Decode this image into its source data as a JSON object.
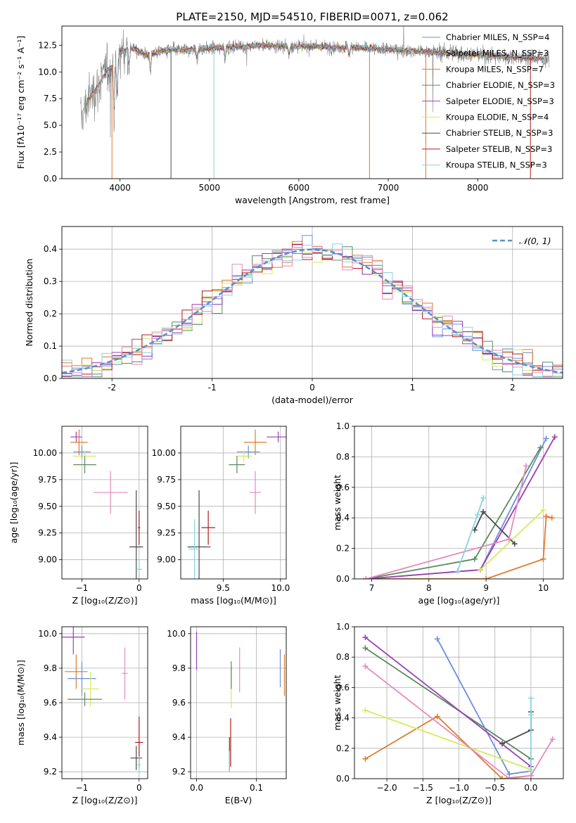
{
  "figure_title": "PLATE=2150, MJD=54510, FIBERID=0071, z=0.062",
  "model_colors": {
    "Chabrier MILES": "#6a8fdb",
    "Salpeter MILES": "#8fa3c7",
    "Kroupa MILES": "#e07b2a",
    "Chabrier ELODIE": "#5a8a5e",
    "Salpeter ELODIE": "#9a3fb5",
    "Kroupa ELODIE": "#d6ea5e",
    "Chabrier STELIB": "#4a4a4a",
    "Salpeter STELIB": "#b01c1c",
    "Kroupa STELIB": "#8ad3e0",
    "pink": "#e48bbd"
  },
  "chart_data": [
    {
      "id": "spectrum",
      "type": "line",
      "xlabel": "wavelength [Angstrom, rest frame]",
      "ylabel": "Flux [fλ10⁻¹⁷ erg cm⁻² s⁻¹ A⁻¹]",
      "xlim": [
        3350,
        8950
      ],
      "ylim": [
        0,
        14.3
      ],
      "xticks": [
        4000,
        5000,
        6000,
        7000,
        8000
      ],
      "yticks": [
        0.0,
        2.5,
        5.0,
        7.5,
        10.0,
        12.5
      ],
      "ytick_labels": [
        "0.0",
        "2.5",
        "5.0",
        "7.5",
        "10.0",
        "12.5"
      ],
      "grid": false,
      "legend_position": "right",
      "legend": [
        "Chabrier MILES, N_SSP=4",
        "Salpeter MILES, N_SSP=3",
        "Kroupa MILES, N_SSP=7",
        "Chabrier ELODIE, N_SSP=3",
        "Salpeter ELODIE, N_SSP=3",
        "Kroupa ELODIE, N_SSP=4",
        "Chabrier STELIB, N_SSP=3",
        "Salpeter STELIB, N_SSP=3",
        "Kroupa STELIB, N_SSP=3"
      ],
      "data_continuum": {
        "x": [
          3560,
          3650,
          3750,
          3850,
          3950,
          4000,
          4100,
          4200,
          4300,
          4400,
          4500,
          4600,
          4700,
          4800,
          5000,
          5200,
          5400,
          5600,
          5800,
          6000,
          6200,
          6400,
          6600,
          6800,
          7000,
          7200,
          7400,
          7600,
          7800,
          8000,
          8200,
          8400,
          8600,
          8800
        ],
        "y": [
          5.5,
          7.5,
          8.6,
          10.1,
          10.8,
          11.8,
          12.3,
          12.0,
          11.6,
          11.8,
          12.0,
          12.1,
          12.0,
          12.1,
          12.2,
          12.3,
          12.4,
          12.5,
          12.4,
          12.4,
          12.4,
          12.3,
          12.3,
          12.2,
          12.1,
          12.0,
          11.9,
          11.8,
          11.7,
          11.6,
          11.5,
          11.4,
          11.3,
          11.2
        ]
      }
    },
    {
      "id": "residuals",
      "type": "histogram",
      "xlabel": "(data-model)/error",
      "ylabel": "Normed distribution",
      "xlim": [
        -2.5,
        2.5
      ],
      "ylim": [
        0,
        0.47
      ],
      "xticks": [
        -2,
        -1,
        0,
        1,
        2
      ],
      "yticks": [
        0.0,
        0.1,
        0.2,
        0.3,
        0.4
      ],
      "ytick_labels": [
        "0.0",
        "0.1",
        "0.2",
        "0.3",
        "0.4"
      ],
      "grid": true,
      "legend_position": "top-right",
      "reference_label": "𝒩(0, 1)",
      "bin_width": 0.1
    },
    {
      "id": "age_vs_Z",
      "type": "scatter",
      "xlabel": "Z [log₁₀(Z/Z⊙)]",
      "ylabel": "age  [log₁₀(age/yr)]",
      "xlim": [
        -1.35,
        0.15
      ],
      "ylim": [
        8.82,
        10.25
      ],
      "xticks": [
        -1,
        0
      ],
      "xtick_labels": [
        "−1",
        "0"
      ],
      "yticks": [
        9.0,
        9.25,
        9.5,
        9.75,
        10.0
      ],
      "ytick_labels": [
        "9.00",
        "9.25",
        "9.50",
        "9.75",
        "10.00"
      ],
      "grid": true,
      "points": [
        {
          "model": "Salpeter ELODIE",
          "x": -1.1,
          "y": 10.15,
          "xerr": 0.1,
          "yerr": 0.05
        },
        {
          "model": "Kroupa MILES",
          "x": -1.05,
          "y": 10.1,
          "xerr": 0.15,
          "yerr": 0.12
        },
        {
          "model": "Chabrier MILES",
          "x": -1.0,
          "y": 10.01,
          "xerr": 0.15,
          "yerr": 0.06
        },
        {
          "model": "Kroupa ELODIE",
          "x": -0.95,
          "y": 9.97,
          "xerr": 0.2,
          "yerr": 0.05
        },
        {
          "model": "Chabrier ELODIE",
          "x": -0.95,
          "y": 9.89,
          "xerr": 0.2,
          "yerr": 0.08
        },
        {
          "model": "pink",
          "x": -0.5,
          "y": 9.63,
          "xerr": 0.3,
          "yerr": 0.2
        },
        {
          "model": "Chabrier STELIB",
          "x": -0.05,
          "y": 9.12,
          "xerr": 0.12,
          "yerr": 0.53
        },
        {
          "model": "Salpeter STELIB",
          "x": 0.0,
          "y": 9.3,
          "xerr": 0.02,
          "yerr": 0.16
        },
        {
          "model": "Kroupa STELIB",
          "x": 0.0,
          "y": 8.91,
          "xerr": 0.05,
          "yerr": 0.08
        }
      ]
    },
    {
      "id": "age_vs_mass",
      "type": "scatter",
      "xlabel": "mass [log₁₀(M/M⊙)]",
      "ylabel": "",
      "xlim": [
        9.13,
        10.05
      ],
      "ylim": [
        8.82,
        10.25
      ],
      "xticks": [
        9.5,
        10.0
      ],
      "xtick_labels": [
        "9.5",
        "10.0"
      ],
      "yticks": [
        9.0,
        9.25,
        9.5,
        9.75,
        10.0
      ],
      "ytick_labels": [
        "9.00",
        "9.25",
        "9.50",
        "9.75",
        "10.00"
      ],
      "grid": true,
      "points": [
        {
          "model": "Salpeter ELODIE",
          "x": 9.98,
          "y": 10.15,
          "xerr": 0.1,
          "yerr": 0.05
        },
        {
          "model": "Kroupa MILES",
          "x": 9.78,
          "y": 10.1,
          "xerr": 0.1,
          "yerr": 0.12
        },
        {
          "model": "Chabrier MILES",
          "x": 9.72,
          "y": 10.01,
          "xerr": 0.1,
          "yerr": 0.06
        },
        {
          "model": "Kroupa ELODIE",
          "x": 9.68,
          "y": 9.97,
          "xerr": 0.07,
          "yerr": 0.05
        },
        {
          "model": "Chabrier ELODIE",
          "x": 9.62,
          "y": 9.89,
          "xerr": 0.07,
          "yerr": 0.08
        },
        {
          "model": "pink",
          "x": 9.78,
          "y": 9.63,
          "xerr": 0.05,
          "yerr": 0.2
        },
        {
          "model": "Chabrier STELIB",
          "x": 9.29,
          "y": 9.12,
          "xerr": 0.1,
          "yerr": 0.53
        },
        {
          "model": "Salpeter STELIB",
          "x": 9.37,
          "y": 9.3,
          "xerr": 0.06,
          "yerr": 0.16
        },
        {
          "model": "Kroupa STELIB",
          "x": 9.25,
          "y": 9.1,
          "xerr": 0.05,
          "yerr": 0.28
        }
      ]
    },
    {
      "id": "weight_vs_age",
      "type": "line",
      "xlabel": "age  [log₁₀(age/yr)]",
      "ylabel": "mass weight",
      "xlim": [
        6.7,
        10.35
      ],
      "ylim": [
        0,
        1.0
      ],
      "xticks": [
        7,
        8,
        9,
        10
      ],
      "yticks": [
        0.0,
        0.2,
        0.4,
        0.6,
        0.8,
        1.0
      ],
      "ytick_labels": [
        "0.0",
        "0.2",
        "0.4",
        "0.6",
        "0.8",
        "1.0"
      ],
      "grid": true,
      "series": [
        {
          "model": "Chabrier MILES",
          "x": [
            6.9,
            8.9,
            10.05
          ],
          "y": [
            0.0,
            0.06,
            0.92
          ]
        },
        {
          "model": "Kroupa MILES",
          "x": [
            6.9,
            9.0,
            10.0,
            10.05,
            10.15
          ],
          "y": [
            0.0,
            0.0,
            0.13,
            0.41,
            0.4
          ]
        },
        {
          "model": "Chabrier ELODIE",
          "x": [
            6.9,
            8.8,
            9.95
          ],
          "y": [
            0.0,
            0.13,
            0.86
          ]
        },
        {
          "model": "Salpeter ELODIE",
          "x": [
            6.9,
            8.9,
            10.2
          ],
          "y": [
            0.0,
            0.06,
            0.93
          ]
        },
        {
          "model": "Kroupa ELODIE",
          "x": [
            8.9,
            10.0
          ],
          "y": [
            0.06,
            0.45
          ]
        },
        {
          "model": "Chabrier STELIB",
          "x": [
            8.8,
            8.95,
            9.5
          ],
          "y": [
            0.32,
            0.44,
            0.23
          ]
        },
        {
          "model": "pink",
          "x": [
            6.9,
            9.4,
            9.7
          ],
          "y": [
            0.0,
            0.26,
            0.74
          ]
        },
        {
          "model": "Kroupa STELIB",
          "x": [
            8.5,
            8.85,
            8.95
          ],
          "y": [
            0.05,
            0.42,
            0.53
          ]
        }
      ]
    },
    {
      "id": "mass_vs_Z",
      "type": "scatter",
      "xlabel": "Z [log₁₀(Z/Z⊙)]",
      "ylabel": "mass [log₁₀(M/M⊙)]",
      "xlim": [
        -1.35,
        0.15
      ],
      "ylim": [
        9.16,
        10.04
      ],
      "xticks": [
        -1,
        0
      ],
      "xtick_labels": [
        "−1",
        "0"
      ],
      "yticks": [
        9.2,
        9.4,
        9.6,
        9.8,
        10.0
      ],
      "ytick_labels": [
        "9.2",
        "9.4",
        "9.6",
        "9.8",
        "10.0"
      ],
      "grid": true,
      "points": [
        {
          "model": "Salpeter ELODIE",
          "x": -1.15,
          "y": 9.98,
          "xerr": 0.2,
          "yerr": 0.1
        },
        {
          "model": "Kroupa MILES",
          "x": -1.1,
          "y": 9.78,
          "xerr": 0.2,
          "yerr": 0.1
        },
        {
          "model": "Chabrier MILES",
          "x": -1.0,
          "y": 9.74,
          "xerr": 0.25,
          "yerr": 0.1
        },
        {
          "model": "Kroupa ELODIE",
          "x": -0.85,
          "y": 9.68,
          "xerr": 0.15,
          "yerr": 0.1
        },
        {
          "model": "Chabrier ELODIE",
          "x": -0.95,
          "y": 9.62,
          "xerr": 0.3,
          "yerr": 0.04
        },
        {
          "model": "pink",
          "x": -0.25,
          "y": 9.77,
          "xerr": 0.05,
          "yerr": 0.15
        },
        {
          "model": "Chabrier STELIB",
          "x": -0.05,
          "y": 9.28,
          "xerr": 0.1,
          "yerr": 0.07
        },
        {
          "model": "Salpeter STELIB",
          "x": 0.0,
          "y": 9.37,
          "xerr": 0.07,
          "yerr": 0.15
        },
        {
          "model": "Kroupa STELIB",
          "x": 0.0,
          "y": 9.24,
          "xerr": 0.03,
          "yerr": 0.05
        }
      ]
    },
    {
      "id": "mass_vs_EBV",
      "type": "scatter",
      "xlabel": "E(B-V)",
      "ylabel": "",
      "xlim": [
        -0.01,
        0.15
      ],
      "ylim": [
        9.16,
        10.04
      ],
      "xticks": [
        0.0,
        0.1
      ],
      "xtick_labels": [
        "0.0",
        "0.1"
      ],
      "yticks": [
        9.2,
        9.4,
        9.6,
        9.8,
        10.0
      ],
      "ytick_labels": [
        "9.2",
        "9.4",
        "9.6",
        "9.8",
        "10.0"
      ],
      "grid": true,
      "points": [
        {
          "model": "Salpeter ELODIE",
          "x": 0.0,
          "y": 9.9,
          "yerr": 0.11
        },
        {
          "model": "Kroupa MILES",
          "x": 0.147,
          "y": 9.76,
          "yerr": 0.12
        },
        {
          "model": "Chabrier MILES",
          "x": 0.14,
          "y": 9.8,
          "yerr": 0.11
        },
        {
          "model": "Kroupa ELODIE",
          "x": 0.058,
          "y": 9.69,
          "yerr": 0.12
        },
        {
          "model": "Chabrier ELODIE",
          "x": 0.058,
          "y": 9.76,
          "yerr": 0.08
        },
        {
          "model": "pink",
          "x": 0.072,
          "y": 9.79,
          "yerr": 0.13
        },
        {
          "model": "Chabrier STELIB",
          "x": 0.055,
          "y": 9.3,
          "yerr": 0.1
        },
        {
          "model": "Salpeter STELIB",
          "x": 0.057,
          "y": 9.37,
          "yerr": 0.14
        },
        {
          "model": "Kroupa STELIB",
          "x": 0.055,
          "y": 9.26,
          "yerr": 0.06
        }
      ]
    },
    {
      "id": "weight_vs_Z",
      "type": "line",
      "xlabel": "Z [log₁₀(Z/Z⊙)]",
      "ylabel": "mass weight",
      "xlim": [
        -2.45,
        0.45
      ],
      "ylim": [
        0,
        1.0
      ],
      "xticks": [
        -2.0,
        -1.5,
        -1.0,
        -0.5,
        0.0
      ],
      "xtick_labels": [
        "−2.0",
        "−1.5",
        "−1.0",
        "−0.5",
        "0.0"
      ],
      "yticks": [
        0.0,
        0.2,
        0.4,
        0.6,
        0.8,
        1.0
      ],
      "ytick_labels": [
        "0.0",
        "0.2",
        "0.4",
        "0.6",
        "0.8",
        "1.0"
      ],
      "grid": true,
      "series": [
        {
          "model": "Chabrier MILES",
          "x": [
            -1.3,
            -0.3,
            0.0
          ],
          "y": [
            0.92,
            0.03,
            0.05
          ]
        },
        {
          "model": "Kroupa MILES",
          "x": [
            -2.3,
            -1.3,
            -0.4,
            0.0
          ],
          "y": [
            0.13,
            0.41,
            0.0,
            0.02
          ]
        },
        {
          "model": "Chabrier ELODIE",
          "x": [
            -2.3,
            0.0
          ],
          "y": [
            0.86,
            0.13
          ]
        },
        {
          "model": "Salpeter ELODIE",
          "x": [
            -2.3,
            0.0
          ],
          "y": [
            0.93,
            0.08
          ]
        },
        {
          "model": "Kroupa ELODIE",
          "x": [
            -2.3,
            0.0
          ],
          "y": [
            0.45,
            0.06
          ]
        },
        {
          "model": "Chabrier STELIB",
          "x": [
            -0.4,
            0.0,
            0.0
          ],
          "y": [
            0.23,
            0.32,
            0.44
          ]
        },
        {
          "model": "pink",
          "x": [
            -2.3,
            -0.3,
            0.0,
            0.3
          ],
          "y": [
            0.74,
            0.0,
            0.02,
            0.26
          ]
        },
        {
          "model": "Kroupa STELIB",
          "x": [
            0.0,
            0.0,
            0.0
          ],
          "y": [
            0.05,
            0.42,
            0.53
          ]
        }
      ]
    }
  ]
}
